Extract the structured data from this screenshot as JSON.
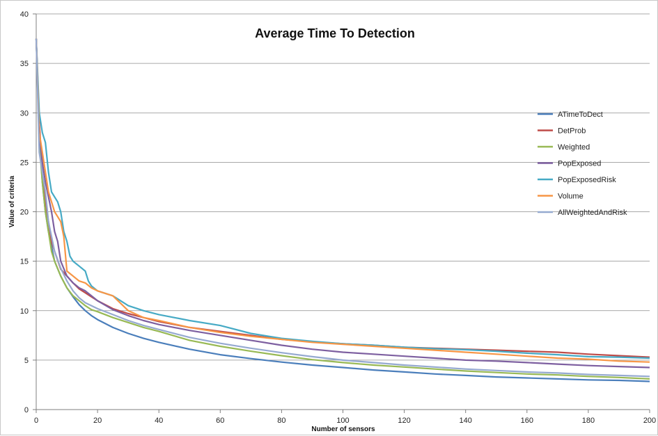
{
  "chart_data": {
    "type": "line",
    "title": "Average Time To Detection",
    "xlabel": "Number of sensors",
    "ylabel": "Value of criteria",
    "xlim": [
      0,
      200
    ],
    "ylim": [
      0,
      40
    ],
    "xticks": [
      0,
      20,
      40,
      60,
      80,
      100,
      120,
      140,
      160,
      180,
      200
    ],
    "yticks": [
      0,
      5,
      10,
      15,
      20,
      25,
      30,
      35,
      40
    ],
    "grid": "horizontal",
    "legend_position": "right",
    "series": [
      {
        "name": "ATimeToDect",
        "color": "#4a7ebb",
        "points": [
          [
            0,
            37.5
          ],
          [
            1,
            28
          ],
          [
            2,
            23
          ],
          [
            3,
            20
          ],
          [
            4,
            18
          ],
          [
            5,
            16.5
          ],
          [
            6,
            15
          ],
          [
            8,
            13.5
          ],
          [
            10,
            12.3
          ],
          [
            12,
            11.4
          ],
          [
            14,
            10.6
          ],
          [
            16,
            10
          ],
          [
            18,
            9.5
          ],
          [
            20,
            9.1
          ],
          [
            25,
            8.3
          ],
          [
            30,
            7.7
          ],
          [
            35,
            7.2
          ],
          [
            40,
            6.8
          ],
          [
            50,
            6.1
          ],
          [
            60,
            5.55
          ],
          [
            70,
            5.15
          ],
          [
            80,
            4.8
          ],
          [
            90,
            4.5
          ],
          [
            100,
            4.25
          ],
          [
            110,
            4.0
          ],
          [
            120,
            3.8
          ],
          [
            130,
            3.6
          ],
          [
            140,
            3.45
          ],
          [
            150,
            3.3
          ],
          [
            160,
            3.2
          ],
          [
            170,
            3.1
          ],
          [
            180,
            3.0
          ],
          [
            190,
            2.95
          ],
          [
            200,
            2.85
          ]
        ]
      },
      {
        "name": "DetProb",
        "color": "#be4b48",
        "points": [
          [
            0,
            37.5
          ],
          [
            1,
            29
          ],
          [
            2,
            24
          ],
          [
            3,
            21
          ],
          [
            4,
            19
          ],
          [
            5,
            17
          ],
          [
            6,
            16
          ],
          [
            8,
            14.2
          ],
          [
            10,
            13.5
          ],
          [
            12,
            12.8
          ],
          [
            14,
            12.2
          ],
          [
            16,
            11.8
          ],
          [
            18,
            11.4
          ],
          [
            20,
            11
          ],
          [
            25,
            10.2
          ],
          [
            30,
            9.7
          ],
          [
            35,
            9.3
          ],
          [
            40,
            8.9
          ],
          [
            50,
            8.3
          ],
          [
            60,
            7.9
          ],
          [
            70,
            7.5
          ],
          [
            80,
            7.1
          ],
          [
            90,
            6.85
          ],
          [
            100,
            6.65
          ],
          [
            110,
            6.5
          ],
          [
            120,
            6.3
          ],
          [
            130,
            6.2
          ],
          [
            140,
            6.1
          ],
          [
            150,
            6.0
          ],
          [
            160,
            5.9
          ],
          [
            170,
            5.8
          ],
          [
            180,
            5.6
          ],
          [
            190,
            5.45
          ],
          [
            200,
            5.3
          ]
        ]
      },
      {
        "name": "Weighted",
        "color": "#98b954",
        "points": [
          [
            0,
            37.5
          ],
          [
            1,
            27
          ],
          [
            2,
            23
          ],
          [
            3,
            20
          ],
          [
            4,
            18
          ],
          [
            5,
            16
          ],
          [
            6,
            15
          ],
          [
            8,
            13.5
          ],
          [
            10,
            12.3
          ],
          [
            12,
            11.5
          ],
          [
            14,
            11
          ],
          [
            16,
            10.5
          ],
          [
            18,
            10.1
          ],
          [
            20,
            9.9
          ],
          [
            25,
            9.3
          ],
          [
            30,
            8.8
          ],
          [
            35,
            8.3
          ],
          [
            40,
            7.9
          ],
          [
            50,
            7
          ],
          [
            60,
            6.4
          ],
          [
            70,
            5.9
          ],
          [
            80,
            5.45
          ],
          [
            90,
            5.05
          ],
          [
            100,
            4.75
          ],
          [
            110,
            4.5
          ],
          [
            120,
            4.3
          ],
          [
            130,
            4.1
          ],
          [
            140,
            3.9
          ],
          [
            150,
            3.75
          ],
          [
            160,
            3.6
          ],
          [
            170,
            3.5
          ],
          [
            180,
            3.35
          ],
          [
            190,
            3.25
          ],
          [
            200,
            3.1
          ]
        ]
      },
      {
        "name": "PopExposed",
        "color": "#7d5fa0",
        "points": [
          [
            0,
            37.5
          ],
          [
            1,
            28
          ],
          [
            2,
            25
          ],
          [
            3,
            23
          ],
          [
            4,
            21.5
          ],
          [
            5,
            20
          ],
          [
            6,
            18
          ],
          [
            7,
            17
          ],
          [
            8,
            15
          ],
          [
            10,
            13.5
          ],
          [
            12,
            12.8
          ],
          [
            14,
            12.3
          ],
          [
            16,
            12
          ],
          [
            18,
            11.5
          ],
          [
            20,
            11
          ],
          [
            25,
            10.1
          ],
          [
            30,
            9.5
          ],
          [
            35,
            9
          ],
          [
            40,
            8.6
          ],
          [
            50,
            8
          ],
          [
            60,
            7.5
          ],
          [
            70,
            7.0
          ],
          [
            80,
            6.5
          ],
          [
            90,
            6.1
          ],
          [
            100,
            5.8
          ],
          [
            110,
            5.6
          ],
          [
            120,
            5.4
          ],
          [
            130,
            5.2
          ],
          [
            140,
            5.0
          ],
          [
            150,
            4.9
          ],
          [
            160,
            4.75
          ],
          [
            170,
            4.6
          ],
          [
            180,
            4.45
          ],
          [
            190,
            4.35
          ],
          [
            200,
            4.25
          ]
        ]
      },
      {
        "name": "PopExposedRisk",
        "color": "#46aac5",
        "points": [
          [
            0,
            37.5
          ],
          [
            1,
            30
          ],
          [
            2,
            28
          ],
          [
            3,
            27
          ],
          [
            4,
            24
          ],
          [
            5,
            22
          ],
          [
            6,
            21.5
          ],
          [
            7,
            21
          ],
          [
            8,
            20
          ],
          [
            9,
            18
          ],
          [
            10,
            17
          ],
          [
            11,
            15.5
          ],
          [
            12,
            15
          ],
          [
            14,
            14.5
          ],
          [
            16,
            14
          ],
          [
            17,
            13
          ],
          [
            18,
            12.5
          ],
          [
            20,
            12
          ],
          [
            25,
            11.5
          ],
          [
            30,
            10.5
          ],
          [
            35,
            10
          ],
          [
            40,
            9.6
          ],
          [
            50,
            9
          ],
          [
            60,
            8.5
          ],
          [
            70,
            7.7
          ],
          [
            80,
            7.2
          ],
          [
            90,
            6.9
          ],
          [
            100,
            6.65
          ],
          [
            110,
            6.5
          ],
          [
            120,
            6.3
          ],
          [
            130,
            6.15
          ],
          [
            140,
            6.05
          ],
          [
            150,
            5.9
          ],
          [
            160,
            5.7
          ],
          [
            170,
            5.55
          ],
          [
            180,
            5.35
          ],
          [
            190,
            5.3
          ],
          [
            200,
            5.2
          ]
        ]
      },
      {
        "name": "Volume",
        "color": "#f79646",
        "points": [
          [
            0,
            37.5
          ],
          [
            1,
            28
          ],
          [
            2,
            26
          ],
          [
            3,
            24
          ],
          [
            4,
            22
          ],
          [
            5,
            21
          ],
          [
            6,
            20
          ],
          [
            7,
            19.5
          ],
          [
            8,
            19
          ],
          [
            9,
            17.5
          ],
          [
            10,
            14
          ],
          [
            12,
            13.5
          ],
          [
            14,
            13
          ],
          [
            16,
            12.8
          ],
          [
            18,
            12.3
          ],
          [
            20,
            12
          ],
          [
            25,
            11.5
          ],
          [
            30,
            10
          ],
          [
            35,
            9.3
          ],
          [
            40,
            9
          ],
          [
            50,
            8.3
          ],
          [
            60,
            7.8
          ],
          [
            70,
            7.4
          ],
          [
            80,
            7.1
          ],
          [
            90,
            6.8
          ],
          [
            100,
            6.6
          ],
          [
            110,
            6.4
          ],
          [
            120,
            6.2
          ],
          [
            130,
            6.0
          ],
          [
            140,
            5.8
          ],
          [
            150,
            5.6
          ],
          [
            160,
            5.4
          ],
          [
            170,
            5.2
          ],
          [
            180,
            5.1
          ],
          [
            190,
            4.9
          ],
          [
            200,
            4.8
          ]
        ]
      },
      {
        "name": "AllWeightedAndRisk",
        "color": "#95a9d0",
        "points": [
          [
            0,
            37.5
          ],
          [
            1,
            26
          ],
          [
            2,
            24
          ],
          [
            3,
            22
          ],
          [
            4,
            19
          ],
          [
            5,
            17.5
          ],
          [
            6,
            16
          ],
          [
            8,
            14.3
          ],
          [
            10,
            13
          ],
          [
            12,
            12
          ],
          [
            14,
            11.3
          ],
          [
            16,
            10.8
          ],
          [
            18,
            10.5
          ],
          [
            20,
            10.2
          ],
          [
            25,
            9.6
          ],
          [
            30,
            9
          ],
          [
            35,
            8.5
          ],
          [
            40,
            8.1
          ],
          [
            50,
            7.3
          ],
          [
            60,
            6.7
          ],
          [
            70,
            6.2
          ],
          [
            80,
            5.75
          ],
          [
            90,
            5.35
          ],
          [
            100,
            5.0
          ],
          [
            110,
            4.75
          ],
          [
            120,
            4.5
          ],
          [
            130,
            4.3
          ],
          [
            140,
            4.1
          ],
          [
            150,
            3.95
          ],
          [
            160,
            3.8
          ],
          [
            170,
            3.7
          ],
          [
            180,
            3.55
          ],
          [
            190,
            3.45
          ],
          [
            200,
            3.35
          ]
        ]
      }
    ]
  }
}
